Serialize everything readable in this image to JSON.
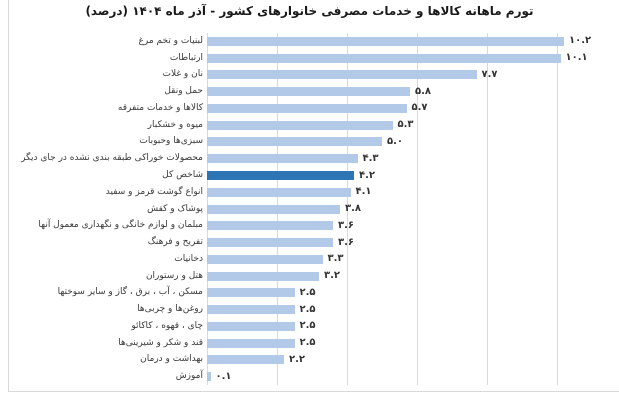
{
  "title": "تورم ماهانه کالاها و خدمات مصرفی خانوارهای کشور - آذر ماه ۱۴۰۴ (درصد)",
  "chart_data": {
    "type": "bar",
    "orientation": "horizontal",
    "title": "تورم ماهانه کالاها و خدمات مصرفی خانوارهای کشور - آذر ماه ۱۴۰۴ (درصد)",
    "categories": [
      "لبنیات و تخم مرغ",
      "ارتباطات",
      "نان و غلات",
      "حمل ونقل",
      "کالاها و خدمات متفرقه",
      "میوه و خشکبار",
      "سبزی‌ها وحبوبات",
      "محصولات خوراکی طبقه بندی نشده در جای دیگر",
      "شاخص کل",
      "انواع گوشت قرمز و سفید",
      "پوشاک و کفش",
      "مبلمان و لوازم خانگی و نگهداری معمول آنها",
      "تفریح و فرهنگ",
      "دخانیات",
      "هتل و رستوران",
      "مسکن ، آب ، برق ، گاز و سایر سوختها",
      "روغن‌ها و چربی‌ها",
      "چای ، قهوه ، کاکائو",
      "قند و شکر و شیرینی‌ها",
      "بهداشت و درمان",
      "آموزش"
    ],
    "values": [
      10.2,
      10.1,
      7.7,
      5.8,
      5.7,
      5.3,
      5.0,
      4.3,
      4.2,
      4.1,
      3.8,
      3.6,
      3.6,
      3.3,
      3.2,
      2.5,
      2.5,
      2.5,
      2.5,
      2.2,
      0.1
    ],
    "value_labels": [
      "۱۰.۲",
      "۱۰.۱",
      "۷.۷",
      "۵.۸",
      "۵.۷",
      "۵.۳",
      "۵.۰",
      "۴.۳",
      "۴.۲",
      "۴.۱",
      "۳.۸",
      "۳.۶",
      "۳.۶",
      "۳.۳",
      "۳.۲",
      "۲.۵",
      "۲.۵",
      "۲.۵",
      "۲.۵",
      "۲.۲",
      "۰.۱"
    ],
    "highlight_category": "شاخص کل",
    "highlight_index": 8,
    "xlim": [
      0,
      12
    ],
    "gridline_step": 2,
    "gridlines_shown": [
      0,
      2,
      4,
      6,
      8,
      10
    ],
    "grid": true,
    "legend": null,
    "xlabel": "",
    "ylabel": "",
    "colors": {
      "bar": "#b3c9e8",
      "highlight_bar": "#2e75b6",
      "gridline": "#d9d9d9",
      "border": "#d9d9d9",
      "title_text": "#1a1a1a",
      "label_text": "#3a3a3a",
      "value_text": "#333333"
    }
  }
}
